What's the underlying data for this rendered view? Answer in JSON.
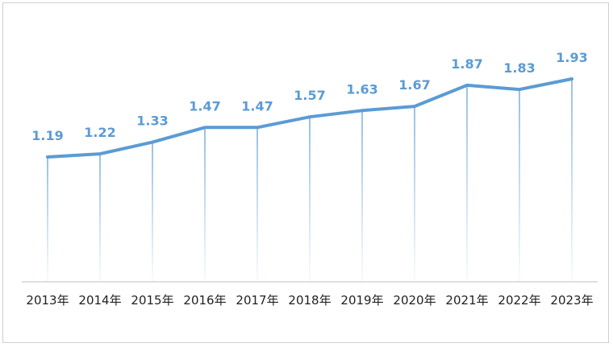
{
  "chart_data": {
    "type": "line",
    "categories": [
      "2013年",
      "2014年",
      "2015年",
      "2016年",
      "2017年",
      "2018年",
      "2019年",
      "2020年",
      "2021年",
      "2022年",
      "2023年"
    ],
    "values": [
      1.19,
      1.22,
      1.33,
      1.47,
      1.47,
      1.57,
      1.63,
      1.67,
      1.87,
      1.83,
      1.93
    ],
    "data_labels": [
      "1.19",
      "1.22",
      "1.33",
      "1.47",
      "1.47",
      "1.57",
      "1.63",
      "1.67",
      "1.87",
      "1.83",
      "1.93"
    ],
    "title": "",
    "xlabel": "",
    "ylabel": "",
    "grid": false,
    "drop_lines": true,
    "legend": "none",
    "colors": {
      "line": "#5b9bd5",
      "label": "#5b9bd5",
      "axis": "#bfbfbf",
      "text": "#222222"
    }
  }
}
